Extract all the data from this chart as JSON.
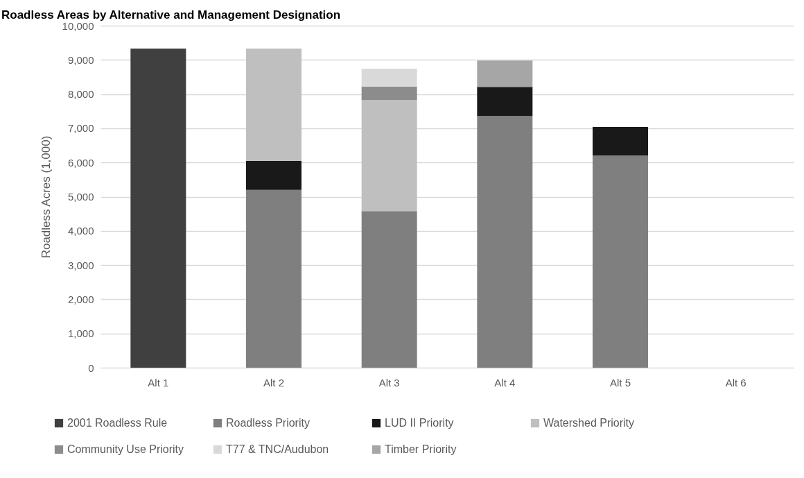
{
  "chart_data": {
    "type": "bar",
    "title": "Roadless Areas by Alternative and Management Designation",
    "ylabel": "Roadless Acres (1,000)",
    "categories": [
      "Alt 1",
      "Alt 2",
      "Alt 3",
      "Alt 4",
      "Alt 5",
      "Alt 6"
    ],
    "stacked": true,
    "ylim": [
      0,
      10000
    ],
    "yticks": [
      0,
      {
        "value": 1000,
        "label": "1,000"
      },
      {
        "value": 2000,
        "label": "2,000"
      },
      {
        "value": 3000,
        "label": "3,000"
      },
      {
        "value": 4000,
        "label": "4,000"
      },
      {
        "value": 5000,
        "label": "5,000"
      },
      {
        "value": 6000,
        "label": "6,000"
      },
      {
        "value": 7000,
        "label": "7,000"
      },
      {
        "value": 8000,
        "label": "8,000"
      },
      {
        "value": 9000,
        "label": "9,000"
      },
      {
        "value": 10000,
        "label": "10,000"
      }
    ],
    "grid": "y",
    "legend": "bottom",
    "series": [
      {
        "name": "2001 Roadless Rule",
        "color": "#404040",
        "values": [
          9330,
          null,
          null,
          null,
          null,
          null
        ]
      },
      {
        "name": "Roadless Priority",
        "color": "#7f7f7f",
        "values": [
          null,
          5200,
          4580,
          7360,
          6200,
          null
        ]
      },
      {
        "name": "LUD II Priority",
        "color": "#191919",
        "values": [
          null,
          850,
          null,
          850,
          840,
          null
        ]
      },
      {
        "name": "Watershed Priority",
        "color": "#bfbfbf",
        "values": [
          null,
          3280,
          3250,
          null,
          null,
          null
        ]
      },
      {
        "name": "Community Use Priority",
        "color": "#8c8c8c",
        "values": [
          null,
          null,
          390,
          null,
          null,
          null
        ]
      },
      {
        "name": "T77 & TNC/Audubon",
        "color": "#d9d9d9",
        "values": [
          null,
          null,
          520,
          null,
          null,
          null
        ]
      },
      {
        "name": "Timber Priority",
        "color": "#a6a6a6",
        "values": [
          null,
          null,
          null,
          770,
          null,
          null
        ]
      }
    ]
  }
}
